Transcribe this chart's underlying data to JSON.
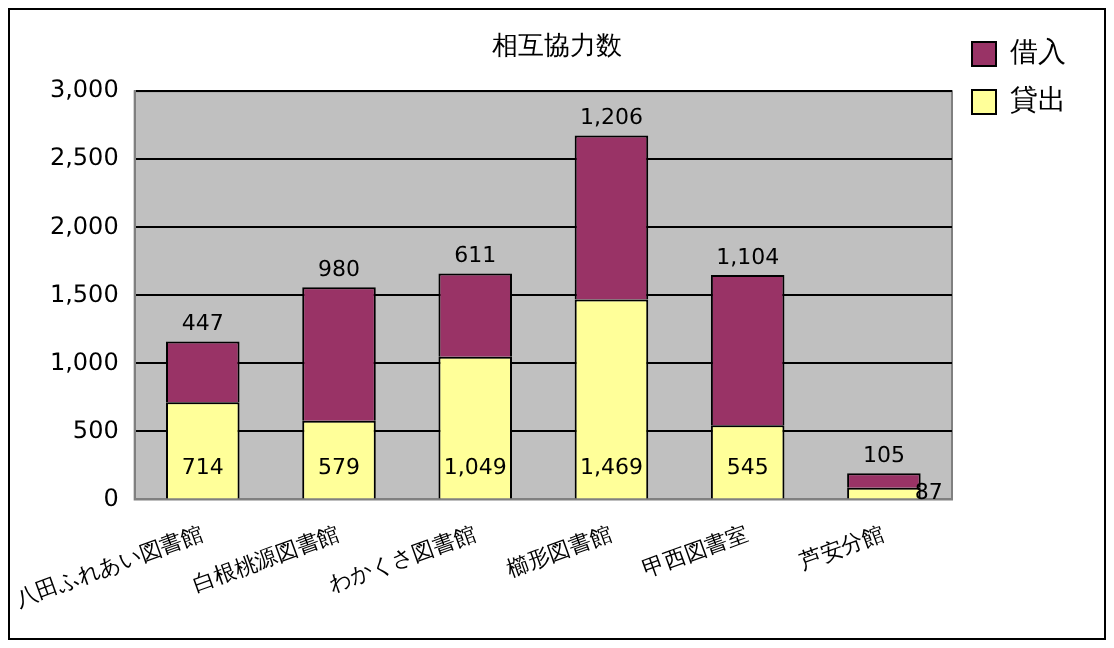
{
  "chart_data": {
    "type": "bar",
    "title": "相互協力数",
    "categories": [
      "八田ふれあい図書館",
      "白根桃源図書館",
      "わかくさ図書館",
      "櫛形図書館",
      "甲西図書室",
      "芦安分館"
    ],
    "stacked": true,
    "series": [
      {
        "name": "貸出",
        "color": "#ffff99",
        "values": [
          714,
          579,
          1049,
          1469,
          545,
          87
        ],
        "value_labels": [
          "714",
          "579",
          "1,049",
          "1,469",
          "545",
          "87"
        ]
      },
      {
        "name": "借入",
        "color": "#993366",
        "values": [
          447,
          980,
          611,
          1206,
          1104,
          105
        ],
        "value_labels": [
          "447",
          "980",
          "611",
          "1,206",
          "1,104",
          "105"
        ]
      }
    ],
    "ylim": [
      0,
      3000
    ],
    "yticks": [
      {
        "value": 0,
        "label": "0"
      },
      {
        "value": 500,
        "label": "500"
      },
      {
        "value": 1000,
        "label": "1,000"
      },
      {
        "value": 1500,
        "label": "1,500"
      },
      {
        "value": 2000,
        "label": "2,000"
      },
      {
        "value": 2500,
        "label": "2,500"
      },
      {
        "value": 3000,
        "label": "3,000"
      }
    ],
    "grid": "y",
    "legend": "right"
  }
}
